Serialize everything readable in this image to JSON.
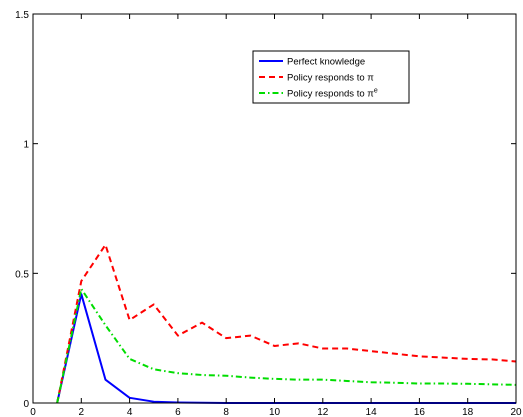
{
  "chart_data": {
    "type": "line",
    "title": "",
    "xlabel": "",
    "ylabel": "",
    "xlim": [
      0,
      20
    ],
    "ylim": [
      0,
      1.5
    ],
    "xticks": [
      0,
      2,
      4,
      6,
      8,
      10,
      12,
      14,
      16,
      18,
      20
    ],
    "xtick_labels": [
      "0",
      "2",
      "4",
      "6",
      "8",
      "10",
      "12",
      "14",
      "16",
      "18",
      "20"
    ],
    "yticks": [
      0,
      0.5,
      1,
      1.5
    ],
    "ytick_labels": [
      "0",
      "0.5",
      "1",
      "1.5"
    ],
    "grid": false,
    "legend_position": "top-right",
    "x": [
      1,
      2,
      3,
      4,
      5,
      6,
      7,
      8,
      9,
      10,
      11,
      12,
      13,
      14,
      15,
      16,
      17,
      18,
      19,
      20
    ],
    "series": [
      {
        "name": "Perfect knowledge",
        "color": "#0000ff",
        "line_style": "solid",
        "values": [
          0,
          0.42,
          0.09,
          0.02,
          0.005,
          0.002,
          0.001,
          0,
          0,
          0,
          0,
          0,
          0,
          0,
          0,
          0,
          0,
          0,
          0,
          0
        ]
      },
      {
        "name": "Policy responds to π",
        "color": "#ff0000",
        "line_style": "dashed",
        "values": [
          0,
          0.47,
          0.61,
          0.32,
          0.38,
          0.26,
          0.31,
          0.25,
          0.26,
          0.22,
          0.23,
          0.21,
          0.21,
          0.2,
          0.19,
          0.18,
          0.175,
          0.17,
          0.168,
          0.16
        ]
      },
      {
        "name": "Policy responds to π",
        "name_superscript": "e",
        "color": "#00dd00",
        "line_style": "dashdot",
        "values": [
          0,
          0.44,
          0.3,
          0.17,
          0.13,
          0.115,
          0.108,
          0.105,
          0.098,
          0.093,
          0.09,
          0.09,
          0.085,
          0.08,
          0.078,
          0.075,
          0.075,
          0.074,
          0.072,
          0.07
        ]
      }
    ]
  }
}
